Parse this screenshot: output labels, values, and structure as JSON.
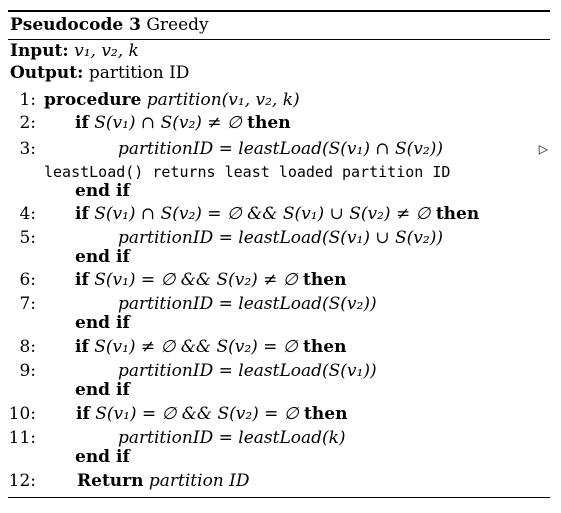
{
  "caption": {
    "label": "Pseudocode 3",
    "title": "Greedy"
  },
  "input": {
    "label": "Input:",
    "value": "v₁, v₂, k"
  },
  "output": {
    "label": "Output:",
    "value": "partition ID"
  },
  "lines": [
    {
      "num": "1:",
      "kw": "procedure",
      "text": "partition(v₁, v₂, k)"
    },
    {
      "num": "2:",
      "kw": "if",
      "text": "S(v₁) ∩ S(v₂) ≠ ∅",
      "kw2": "then"
    },
    {
      "num": "3:",
      "text": "partitionID = leastLoad(S(v₁) ∩ S(v₂))",
      "comment_symbol": "▷"
    },
    {
      "text": "leastLoad() returns least loaded partition ID"
    },
    {
      "kw": "end if"
    },
    {
      "num": "4:",
      "kw": "if",
      "text": "S(v₁) ∩ S(v₂) = ∅  &&  S(v₁) ∪ S(v₂) ≠ ∅",
      "kw2": "then"
    },
    {
      "num": "5:",
      "text": "partitionID = leastLoad(S(v₁) ∪ S(v₂))"
    },
    {
      "kw": "end if"
    },
    {
      "num": "6:",
      "kw": "if",
      "text": "S(v₁) = ∅  &&  S(v₂) ≠ ∅",
      "kw2": "then"
    },
    {
      "num": "7:",
      "text": "partitionID = leastLoad(S(v₂))"
    },
    {
      "kw": "end if"
    },
    {
      "num": "8:",
      "kw": "if",
      "text": "S(v₁) ≠ ∅  &&  S(v₂) = ∅",
      "kw2": "then"
    },
    {
      "num": "9:",
      "text": "partitionID = leastLoad(S(v₁))"
    },
    {
      "kw": "end if"
    },
    {
      "num": "10:",
      "kw": "if",
      "text": "S(v₁) = ∅  &&  S(v₂) = ∅",
      "kw2": "then"
    },
    {
      "num": "11:",
      "text": "partitionID = leastLoad(k)"
    },
    {
      "kw": "end if"
    },
    {
      "num": "12:",
      "kw": "Return",
      "text": "partition ID"
    }
  ]
}
